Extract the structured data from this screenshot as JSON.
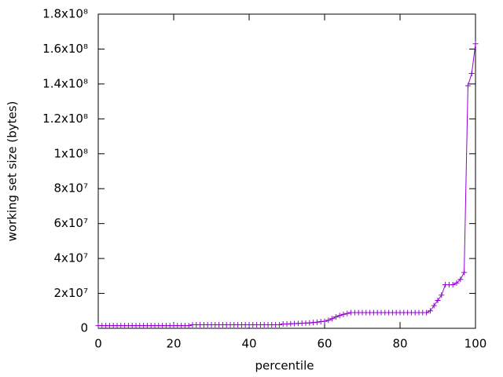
{
  "chart_data": {
    "type": "line",
    "xlabel": "percentile",
    "ylabel": "working set size (bytes)",
    "x": [
      0,
      1,
      2,
      3,
      4,
      5,
      6,
      7,
      8,
      9,
      10,
      11,
      12,
      13,
      14,
      15,
      16,
      17,
      18,
      19,
      20,
      21,
      22,
      23,
      24,
      25,
      26,
      27,
      28,
      29,
      30,
      31,
      32,
      33,
      34,
      35,
      36,
      37,
      38,
      39,
      40,
      41,
      42,
      43,
      44,
      45,
      46,
      47,
      48,
      49,
      50,
      51,
      52,
      53,
      54,
      55,
      56,
      57,
      58,
      59,
      60,
      61,
      62,
      63,
      64,
      65,
      66,
      67,
      68,
      69,
      70,
      71,
      72,
      73,
      74,
      75,
      76,
      77,
      78,
      79,
      80,
      81,
      82,
      83,
      84,
      85,
      86,
      87,
      88,
      89,
      90,
      91,
      92,
      93,
      94,
      95,
      96,
      97,
      98,
      99,
      100
    ],
    "series": [
      {
        "name": null,
        "color": "#9400d3",
        "values": [
          1500000,
          1500000,
          1500000,
          1500000,
          1500000,
          1500000,
          1500000,
          1500000,
          1500000,
          1500000,
          1500000,
          1500000,
          1500000,
          1500000,
          1500000,
          1500000,
          1500000,
          1500000,
          1500000,
          1500000,
          1500000,
          1500000,
          1500000,
          1500000,
          1500000,
          2000000,
          2000000,
          2000000,
          2000000,
          2000000,
          2000000,
          2000000,
          2000000,
          2000000,
          2000000,
          2000000,
          2000000,
          2000000,
          2000000,
          2000000,
          2000000,
          2000000,
          2000000,
          2000000,
          2000000,
          2000000,
          2000000,
          2000000,
          2000000,
          2500000,
          2500000,
          2600000,
          2700000,
          2800000,
          2900000,
          3000000,
          3100000,
          3300000,
          3500000,
          3800000,
          4000000,
          4600000,
          5500000,
          6500000,
          7300000,
          8000000,
          8500000,
          9000000,
          9000000,
          9000000,
          9000000,
          9000000,
          9000000,
          9000000,
          9000000,
          9000000,
          9000000,
          9000000,
          9000000,
          9000000,
          9000000,
          9000000,
          9000000,
          9000000,
          9000000,
          9000000,
          9000000,
          9000000,
          10000000,
          13000000,
          16000000,
          19000000,
          25000000,
          25000000,
          25000000,
          26000000,
          28000000,
          32000000,
          139000000,
          146000000,
          163000000
        ]
      }
    ],
    "xlim": [
      0,
      100
    ],
    "xticks": [
      0,
      20,
      40,
      60,
      80,
      100
    ],
    "ylim": [
      0,
      180000000
    ],
    "yticks": [
      0,
      {
        "value": 20000000,
        "label": "2x10⁷"
      },
      {
        "value": 40000000,
        "label": "4x10⁷"
      },
      {
        "value": 60000000,
        "label": "6x10⁷"
      },
      {
        "value": 80000000,
        "label": "8x10⁷"
      },
      {
        "value": 100000000,
        "label": "1x10⁸"
      },
      {
        "value": 120000000,
        "label": "1.2x10⁸"
      },
      {
        "value": 140000000,
        "label": "1.4x10⁸"
      },
      {
        "value": 160000000,
        "label": "1.6x10⁸"
      },
      {
        "value": 180000000,
        "label": "1.8x10⁸"
      }
    ],
    "grid": false
  }
}
